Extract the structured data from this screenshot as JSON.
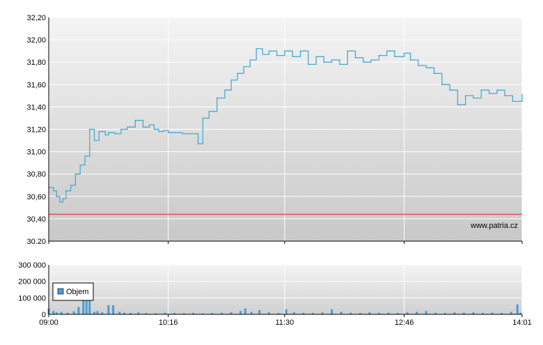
{
  "chart_data": [
    {
      "type": "line",
      "title": "",
      "xlabel": "",
      "ylabel": "",
      "x_ticks": [
        "09:00",
        "10:16",
        "11:30",
        "12:46",
        "14:01"
      ],
      "y_ticks": [
        "30.20",
        "30,40",
        "30,60",
        "30,80",
        "31,00",
        "31,20",
        "31,40",
        "31,60",
        "31,80",
        "32,00",
        "32,20"
      ],
      "ylim": [
        30.2,
        32.2
      ],
      "xlim": [
        "09:00",
        "14:01"
      ],
      "grid": true,
      "reference_line": {
        "value": 30.44,
        "color": "#e05050"
      },
      "watermark": "www.patria.cz",
      "series": [
        {
          "color": "#4aa8d0",
          "x": [
            "09:00",
            "09:03",
            "09:05",
            "09:07",
            "09:09",
            "09:11",
            "09:14",
            "09:17",
            "09:20",
            "09:23",
            "09:26",
            "09:29",
            "09:32",
            "09:36",
            "09:38",
            "09:42",
            "09:46",
            "09:50",
            "09:55",
            "10:00",
            "10:04",
            "10:07",
            "10:10",
            "10:13",
            "10:16",
            "10:20",
            "10:25",
            "10:30",
            "10:35",
            "10:38",
            "10:42",
            "10:47",
            "10:52",
            "10:56",
            "11:00",
            "11:04",
            "11:08",
            "11:12",
            "11:16",
            "11:20",
            "11:25",
            "11:30",
            "11:35",
            "11:40",
            "11:45",
            "11:50",
            "11:55",
            "12:00",
            "12:05",
            "12:10",
            "12:15",
            "12:20",
            "12:25",
            "12:30",
            "12:35",
            "12:40",
            "12:46",
            "12:50",
            "12:55",
            "13:00",
            "13:05",
            "13:10",
            "13:15",
            "13:20",
            "13:25",
            "13:30",
            "13:35",
            "13:40",
            "13:45",
            "13:50",
            "13:55",
            "14:01"
          ],
          "values": [
            30.68,
            30.65,
            30.6,
            30.55,
            30.58,
            30.65,
            30.7,
            30.8,
            30.88,
            30.96,
            31.2,
            31.1,
            31.18,
            31.15,
            31.17,
            31.16,
            31.2,
            31.22,
            31.28,
            31.22,
            31.24,
            31.2,
            31.18,
            31.19,
            31.17,
            31.17,
            31.16,
            31.16,
            31.07,
            31.3,
            31.36,
            31.48,
            31.55,
            31.64,
            31.7,
            31.76,
            31.82,
            31.92,
            31.87,
            31.9,
            31.86,
            31.9,
            31.85,
            31.9,
            31.78,
            31.85,
            31.8,
            31.82,
            31.78,
            31.9,
            31.84,
            31.8,
            31.82,
            31.86,
            31.9,
            31.85,
            31.88,
            31.82,
            31.77,
            31.75,
            31.7,
            31.6,
            31.55,
            31.42,
            31.5,
            31.48,
            31.55,
            31.52,
            31.55,
            31.5,
            31.45,
            31.51
          ]
        }
      ]
    },
    {
      "type": "bar",
      "title": "",
      "xlabel": "",
      "ylabel": "",
      "x_ticks": [
        "09:00",
        "10:16",
        "11:30",
        "12:46",
        "14:01"
      ],
      "y_ticks": [
        "0",
        "100 000",
        "200 000",
        "300 000"
      ],
      "ylim": [
        0,
        300000
      ],
      "xlim": [
        "09:00",
        "14:01"
      ],
      "grid": true,
      "legend": {
        "placement": "top-left",
        "entries": [
          "Objem"
        ]
      },
      "series": [
        {
          "name": "Objem",
          "color": "#4a9bd0",
          "x": [
            "09:00",
            "09:03",
            "09:05",
            "09:08",
            "09:12",
            "09:16",
            "09:19",
            "09:22",
            "09:24",
            "09:26",
            "09:29",
            "09:31",
            "09:34",
            "09:38",
            "09:41",
            "09:45",
            "09:48",
            "09:52",
            "09:57",
            "10:02",
            "10:08",
            "10:14",
            "10:20",
            "10:26",
            "10:32",
            "10:38",
            "10:44",
            "10:50",
            "10:56",
            "11:02",
            "11:05",
            "11:09",
            "11:14",
            "11:20",
            "11:26",
            "11:31",
            "11:36",
            "11:42",
            "11:48",
            "11:54",
            "12:00",
            "12:06",
            "12:12",
            "12:18",
            "12:24",
            "12:30",
            "12:36",
            "12:42",
            "12:48",
            "12:54",
            "13:00",
            "13:06",
            "13:12",
            "13:18",
            "13:24",
            "13:30",
            "13:36",
            "13:42",
            "13:48",
            "13:54",
            "13:58",
            "14:00"
          ],
          "values": [
            35000,
            20000,
            12000,
            15000,
            10000,
            18000,
            45000,
            100000,
            100000,
            100000,
            15000,
            20000,
            12000,
            55000,
            55000,
            15000,
            10000,
            8000,
            12000,
            8000,
            6000,
            10000,
            8000,
            7000,
            9000,
            6000,
            8000,
            10000,
            12000,
            20000,
            35000,
            15000,
            25000,
            12000,
            8000,
            30000,
            12000,
            10000,
            8000,
            12000,
            30000,
            15000,
            10000,
            8000,
            12000,
            9000,
            10000,
            8000,
            12000,
            15000,
            20000,
            10000,
            8000,
            12000,
            10000,
            12000,
            9000,
            10000,
            8000,
            15000,
            60000,
            10000
          ]
        }
      ]
    }
  ]
}
